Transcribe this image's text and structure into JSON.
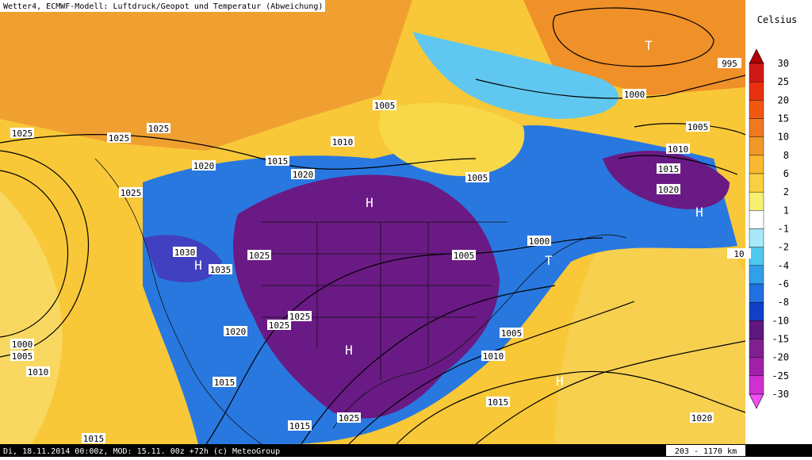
{
  "header": {
    "title": "Wetter4, ECMWF-Modell: Luftdruck/Geopot und Temperatur (Abweichung)"
  },
  "footer": {
    "info": "Di, 18.11.2014 00:00z, MOD: 15.11. 00z +72h (c) MeteoGroup",
    "scale": "203 - 1170 km"
  },
  "legend": {
    "title": "Celsius",
    "ticks": [
      30,
      25,
      20,
      15,
      10,
      8,
      6,
      2,
      1,
      -1,
      -2,
      -4,
      -6,
      -8,
      -10,
      -15,
      -20,
      -25,
      -30
    ],
    "colors": [
      "#b00000",
      "#d01818",
      "#e83010",
      "#f05810",
      "#f07820",
      "#f09828",
      "#f8b830",
      "#f8d040",
      "#f8f070",
      "#ffffff",
      "#a8e8f8",
      "#50c8f0",
      "#30a0e8",
      "#2070e0",
      "#1040c8",
      "#601880",
      "#802090",
      "#a020a8",
      "#d030d0",
      "#f050f0"
    ]
  },
  "map": {
    "isobars": [
      "1025",
      "1025",
      "1025",
      "1020",
      "1015",
      "1020",
      "1010",
      "1005",
      "1025",
      "1030",
      "1035",
      "1025",
      "1025",
      "1025",
      "1020",
      "1000",
      "1005",
      "1010",
      "1015",
      "1025",
      "1015",
      "1015",
      "1005",
      "1005",
      "1000",
      "1005",
      "1010",
      "1015",
      "1020",
      "1005",
      "1010",
      "1015",
      "1020",
      "1000",
      "995",
      "10"
    ],
    "centers": [
      "T",
      "H",
      "H",
      "H",
      "H",
      "T",
      "H"
    ]
  }
}
